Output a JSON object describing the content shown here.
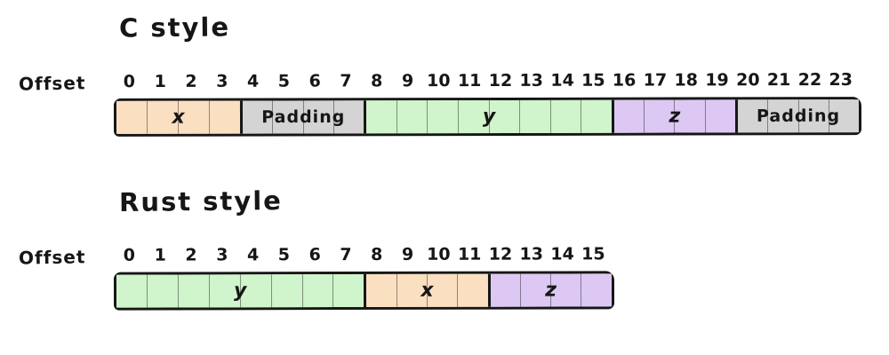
{
  "colors": {
    "background": "#ffffff",
    "ink": "#161616",
    "field_x": "#fbdfc1",
    "field_y": "#d0f4cb",
    "field_z": "#ddc8f4",
    "padding": "#d4d4d4"
  },
  "diagrams": [
    {
      "title": "C style",
      "offset_label": "Offset",
      "total_bytes": 24,
      "offsets": [
        "0",
        "1",
        "2",
        "3",
        "4",
        "5",
        "6",
        "7",
        "8",
        "9",
        "10",
        "11",
        "12",
        "13",
        "14",
        "15",
        "16",
        "17",
        "18",
        "19",
        "20",
        "21",
        "22",
        "23"
      ],
      "segments": [
        {
          "label": "x",
          "size": 4,
          "color": "#fbdfc1"
        },
        {
          "label": "Padding",
          "size": 4,
          "color": "#d4d4d4"
        },
        {
          "label": "y",
          "size": 8,
          "color": "#d0f4cb"
        },
        {
          "label": "z",
          "size": 4,
          "color": "#ddc8f4"
        },
        {
          "label": "Padding",
          "size": 4,
          "color": "#d4d4d4"
        }
      ]
    },
    {
      "title": "Rust style",
      "offset_label": "Offset",
      "total_bytes": 16,
      "offsets": [
        "0",
        "1",
        "2",
        "3",
        "4",
        "5",
        "6",
        "7",
        "8",
        "9",
        "10",
        "11",
        "12",
        "13",
        "14",
        "15"
      ],
      "segments": [
        {
          "label": "y",
          "size": 8,
          "color": "#d0f4cb"
        },
        {
          "label": "x",
          "size": 4,
          "color": "#fbdfc1"
        },
        {
          "label": "z",
          "size": 4,
          "color": "#ddc8f4"
        }
      ]
    }
  ]
}
